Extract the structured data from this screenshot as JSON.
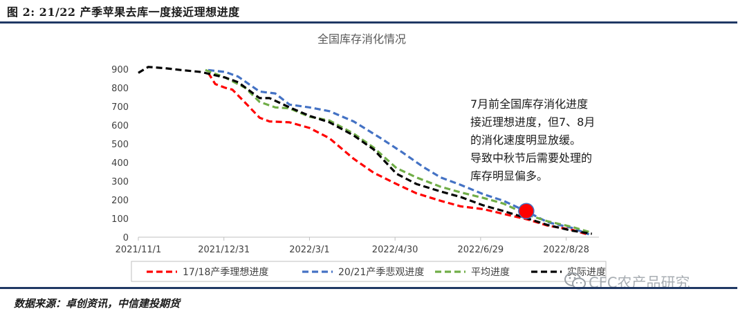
{
  "figure": {
    "caption": "图 2:   21/22 产季苹果去库一度接近理想进度",
    "source": "数据来源：卓创资讯，中信建投期货",
    "watermark": "CFC农产品研究"
  },
  "chart_data": {
    "type": "line",
    "title": "全国库存消化情况",
    "xlabel": "",
    "ylabel": "",
    "ylim": [
      0,
      900
    ],
    "yticks": [
      0,
      100,
      200,
      300,
      400,
      500,
      600,
      700,
      800,
      900
    ],
    "xlim": [
      "2021-11-01",
      "2022-09-20"
    ],
    "xticks": [
      "2021/11/1",
      "2021/12/31",
      "2022/3/1",
      "2022/4/30",
      "2022/6/29",
      "2022/8/28"
    ],
    "xtick_dates": [
      "2021-11-01",
      "2021-12-31",
      "2022-03-01",
      "2022-04-30",
      "2022-06-29",
      "2022-08-28"
    ],
    "legend_position": "bottom",
    "series": [
      {
        "name": "17/18产季理想进度",
        "color": "#ff0000",
        "style": "dashed",
        "points": [
          [
            "2021-12-20",
            880
          ],
          [
            "2021-12-25",
            820
          ],
          [
            "2022-01-01",
            800
          ],
          [
            "2022-01-06",
            790
          ],
          [
            "2022-01-15",
            720
          ],
          [
            "2022-01-25",
            640
          ],
          [
            "2022-02-01",
            620
          ],
          [
            "2022-02-15",
            615
          ],
          [
            "2022-03-01",
            585
          ],
          [
            "2022-03-15",
            530
          ],
          [
            "2022-04-01",
            420
          ],
          [
            "2022-04-15",
            345
          ],
          [
            "2022-05-01",
            285
          ],
          [
            "2022-05-15",
            235
          ],
          [
            "2022-06-01",
            195
          ],
          [
            "2022-06-15",
            165
          ],
          [
            "2022-07-01",
            150
          ],
          [
            "2022-07-15",
            125
          ],
          [
            "2022-08-01",
            95
          ],
          [
            "2022-08-15",
            62
          ],
          [
            "2022-09-01",
            40
          ],
          [
            "2022-09-13",
            12
          ]
        ]
      },
      {
        "name": "20/21产季悲观进度",
        "color": "#4472c4",
        "style": "dashed",
        "points": [
          [
            "2021-12-20",
            895
          ],
          [
            "2022-01-01",
            885
          ],
          [
            "2022-01-10",
            860
          ],
          [
            "2022-01-25",
            780
          ],
          [
            "2022-02-05",
            770
          ],
          [
            "2022-02-15",
            710
          ],
          [
            "2022-03-01",
            695
          ],
          [
            "2022-03-15",
            675
          ],
          [
            "2022-04-01",
            620
          ],
          [
            "2022-04-20",
            530
          ],
          [
            "2022-05-05",
            455
          ],
          [
            "2022-05-20",
            375
          ],
          [
            "2022-06-01",
            320
          ],
          [
            "2022-06-15",
            280
          ],
          [
            "2022-07-01",
            230
          ],
          [
            "2022-07-15",
            195
          ],
          [
            "2022-08-01",
            135
          ],
          [
            "2022-08-15",
            80
          ],
          [
            "2022-09-01",
            50
          ],
          [
            "2022-09-13",
            15
          ]
        ]
      },
      {
        "name": "平均进度",
        "color": "#70ad47",
        "style": "dashed",
        "points": [
          [
            "2021-12-18",
            895
          ],
          [
            "2022-01-01",
            855
          ],
          [
            "2022-01-15",
            800
          ],
          [
            "2022-01-25",
            725
          ],
          [
            "2022-02-05",
            695
          ],
          [
            "2022-02-15",
            690
          ],
          [
            "2022-03-01",
            645
          ],
          [
            "2022-03-15",
            625
          ],
          [
            "2022-04-01",
            555
          ],
          [
            "2022-04-15",
            480
          ],
          [
            "2022-05-01",
            370
          ],
          [
            "2022-05-15",
            320
          ],
          [
            "2022-06-01",
            270
          ],
          [
            "2022-06-15",
            240
          ],
          [
            "2022-07-01",
            210
          ],
          [
            "2022-07-15",
            180
          ],
          [
            "2022-08-01",
            120
          ],
          [
            "2022-08-15",
            85
          ],
          [
            "2022-09-01",
            55
          ],
          [
            "2022-09-13",
            28
          ]
        ]
      },
      {
        "name": "实际进度",
        "color": "#000000",
        "style": "dashed",
        "points": [
          [
            "2021-11-01",
            880
          ],
          [
            "2021-11-08",
            912
          ],
          [
            "2021-11-20",
            905
          ],
          [
            "2021-12-01",
            895
          ],
          [
            "2021-12-15",
            885
          ],
          [
            "2022-01-01",
            855
          ],
          [
            "2022-01-10",
            830
          ],
          [
            "2022-01-25",
            745
          ],
          [
            "2022-02-01",
            745
          ],
          [
            "2022-02-15",
            695
          ],
          [
            "2022-03-01",
            650
          ],
          [
            "2022-03-15",
            615
          ],
          [
            "2022-04-01",
            545
          ],
          [
            "2022-04-15",
            470
          ],
          [
            "2022-05-01",
            340
          ],
          [
            "2022-05-15",
            285
          ],
          [
            "2022-06-01",
            245
          ],
          [
            "2022-06-15",
            215
          ],
          [
            "2022-07-01",
            170
          ],
          [
            "2022-07-15",
            140
          ],
          [
            "2022-08-01",
            100
          ],
          [
            "2022-08-15",
            65
          ],
          [
            "2022-09-01",
            35
          ],
          [
            "2022-09-15",
            18
          ]
        ]
      }
    ],
    "marker": {
      "date": "2022-07-31",
      "value": 140,
      "color": "#ff0000",
      "edge": "#4472c4"
    },
    "annotation": [
      "7月前全国库存消化进度",
      "接近理想进度，但7、8月",
      "的消化速度明显放缓。",
      "导致中秋节后需要处理的",
      "库存明显偏多。"
    ]
  }
}
